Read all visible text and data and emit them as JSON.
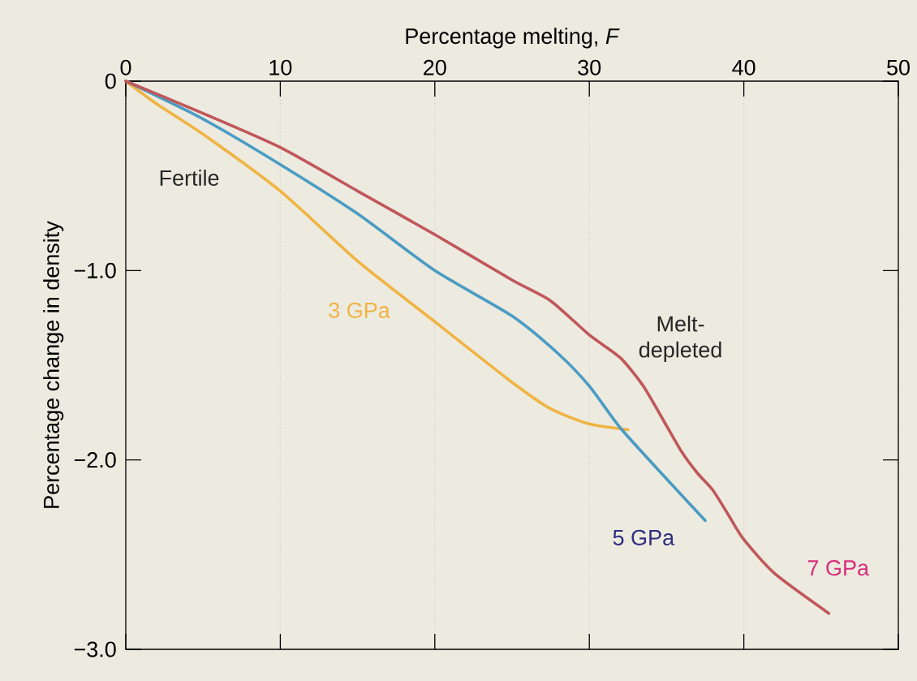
{
  "chart_data": {
    "type": "line",
    "xlabel": "Percentage melting, *F*",
    "ylabel": "Percentage change in density",
    "xlim": [
      0,
      50
    ],
    "ylim": [
      -3,
      0
    ],
    "xticks": [
      0,
      10,
      20,
      30,
      40,
      50
    ],
    "yticks": [
      {
        "value": 0,
        "label": "0"
      },
      {
        "value": -1,
        "label": "−1.0"
      },
      {
        "value": -2,
        "label": "−2.0"
      },
      {
        "value": -3,
        "label": "−3.0"
      }
    ],
    "grid": "x",
    "legend": false,
    "marker": "none",
    "line_style": "solid",
    "annotations": [
      "Fertile",
      "Melt-depleted"
    ],
    "series": [
      {
        "name": "3 GPa",
        "color": "#f0b443",
        "x": [
          0,
          2,
          5,
          10,
          15,
          20,
          25,
          27.5,
          30,
          32.5
        ],
        "values": [
          0,
          -0.12,
          -0.28,
          -0.58,
          -0.95,
          -1.27,
          -1.59,
          -1.73,
          -1.81,
          -1.84
        ]
      },
      {
        "name": "5 GPa",
        "color": "#4a9cc4",
        "x": [
          0,
          5,
          10,
          15,
          20,
          25,
          28,
          30,
          32,
          35,
          37.5
        ],
        "values": [
          0,
          -0.2,
          -0.44,
          -0.7,
          -1.0,
          -1.24,
          -1.44,
          -1.61,
          -1.83,
          -2.1,
          -2.32
        ]
      },
      {
        "name": "7 GPa",
        "color": "#c0575a",
        "x": [
          0,
          5,
          10,
          15,
          20,
          25,
          27.5,
          30,
          32,
          33.5,
          35,
          36,
          37,
          38,
          39,
          40,
          42,
          45.5
        ],
        "values": [
          0,
          -0.17,
          -0.35,
          -0.58,
          -0.81,
          -1.05,
          -1.16,
          -1.34,
          -1.46,
          -1.61,
          -1.82,
          -1.96,
          -2.07,
          -2.16,
          -2.29,
          -2.42,
          -2.6,
          -2.81
        ]
      }
    ]
  }
}
